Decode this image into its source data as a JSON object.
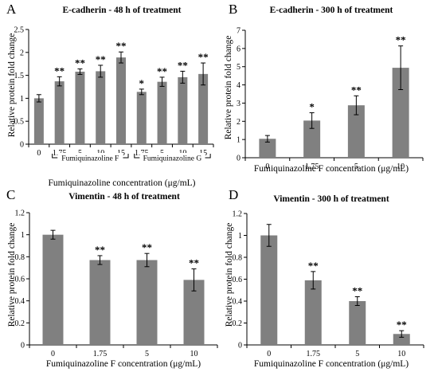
{
  "chart_data": [
    {
      "panel": "A",
      "type": "bar",
      "title": "E-cadherin - 48 h of treatment",
      "xlabel": "Fumiquinazoline concentration (μg/mL)",
      "ylabel": "Relative protein fold change",
      "ylim": [
        0,
        2.5
      ],
      "yticks": [
        0,
        0.5,
        1,
        1.5,
        2,
        2.5
      ],
      "ytick_labels": [
        "0",
        "0.5",
        "1",
        "1.5",
        "2",
        "2.5"
      ],
      "categories": [
        "0",
        "1.75",
        "5",
        "10",
        "15",
        "1.75",
        "5",
        "10",
        "15"
      ],
      "values": [
        1.0,
        1.37,
        1.58,
        1.59,
        1.89,
        1.14,
        1.36,
        1.46,
        1.53
      ],
      "errors": [
        0.08,
        0.1,
        0.06,
        0.13,
        0.12,
        0.06,
        0.1,
        0.13,
        0.24
      ],
      "significance": [
        "",
        "**",
        "**",
        "**",
        "**",
        "*",
        "**",
        "**",
        "**"
      ],
      "groups": [
        {
          "label": "Fumiquinazoline F",
          "from": 1,
          "to": 4
        },
        {
          "label": "Fumiquinazoline G",
          "from": 5,
          "to": 8
        }
      ],
      "bar_color": "#808080",
      "grid": false
    },
    {
      "panel": "B",
      "type": "bar",
      "title": "E-cadherin - 300 h of treatment",
      "xlabel": "Fumiquinazoline F concentration (μg/mL)",
      "ylabel": "Relative protein fold change",
      "ylim": [
        0,
        7
      ],
      "yticks": [
        0,
        1,
        2,
        3,
        4,
        5,
        6,
        7
      ],
      "ytick_labels": [
        "0",
        "1",
        "2",
        "3",
        "4",
        "5",
        "6",
        "7"
      ],
      "categories": [
        "0",
        "1.75",
        "5",
        "10"
      ],
      "values": [
        1.04,
        2.04,
        2.88,
        4.94
      ],
      "errors": [
        0.18,
        0.43,
        0.52,
        1.2
      ],
      "significance": [
        "",
        "*",
        "**",
        "**"
      ],
      "bar_color": "#808080",
      "grid": false
    },
    {
      "panel": "C",
      "type": "bar",
      "title": "Vimentin - 48 h of treatment",
      "xlabel": "Fumiquinazoline F concentration (μg/mL)",
      "ylabel": "Relative protein fold change",
      "ylim": [
        0,
        1.2
      ],
      "yticks": [
        0,
        0.2,
        0.4,
        0.6,
        0.8,
        1,
        1.2
      ],
      "ytick_labels": [
        "0",
        "0.2",
        "0.4",
        "0.6",
        "0.8",
        "1",
        "1.2"
      ],
      "categories": [
        "0",
        "1.75",
        "5",
        "10"
      ],
      "values": [
        1.0,
        0.77,
        0.77,
        0.59
      ],
      "errors": [
        0.04,
        0.04,
        0.06,
        0.1
      ],
      "significance": [
        "",
        "**",
        "**",
        "**"
      ],
      "bar_color": "#808080",
      "grid": false
    },
    {
      "panel": "D",
      "type": "bar",
      "title": "Vimentin - 300 h of treatment",
      "xlabel": "Fumiquinazoline F concentration (μg/mL)",
      "ylabel": "Relative protein fold change",
      "ylim": [
        0,
        1.2
      ],
      "yticks": [
        0,
        0.2,
        0.4,
        0.6,
        0.8,
        1,
        1.2
      ],
      "ytick_labels": [
        "0",
        "0.2",
        "0.4",
        "0.6",
        "0.8",
        "1",
        "1.2"
      ],
      "categories": [
        "0",
        "1.75",
        "5",
        "10"
      ],
      "values": [
        1.0,
        0.59,
        0.4,
        0.1
      ],
      "errors": [
        0.1,
        0.08,
        0.04,
        0.03
      ],
      "significance": [
        "",
        "**",
        "**",
        "**"
      ],
      "bar_color": "#808080",
      "grid": false
    }
  ]
}
